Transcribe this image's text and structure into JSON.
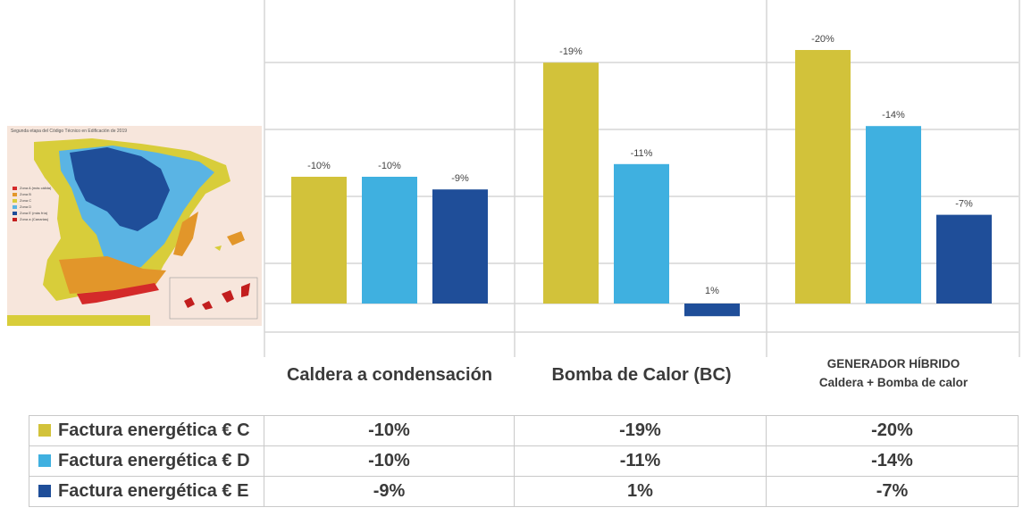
{
  "chart_data": {
    "type": "bar",
    "categories": [
      "Caldera a condensación",
      "Bomba de Calor (BC)",
      "GENERADOR HÍBRIDO\nCaldera + Bomba de calor"
    ],
    "category_lines": [
      [
        "Caldera a condensación"
      ],
      [
        "Bomba de Calor (BC)"
      ],
      [
        "GENERADOR HÍBRIDO",
        "Caldera + Bomba de calor"
      ]
    ],
    "series": [
      {
        "name": "Factura energética € C",
        "color": "#d2c23a",
        "values": [
          -10,
          -19,
          -20
        ],
        "labels": [
          "-10%",
          "-19%",
          "-20%"
        ]
      },
      {
        "name": "Factura energética € D",
        "color": "#3fb0e0",
        "values": [
          -10,
          -11,
          -14
        ],
        "labels": [
          "-10%",
          "-11%",
          "-14%"
        ]
      },
      {
        "name": "Factura energética € E",
        "color": "#1f4e99",
        "values": [
          -9,
          1,
          -7
        ],
        "labels": [
          "-9%",
          "1%",
          "-7%"
        ]
      }
    ],
    "note": "Bars grow upward for savings (negative %); the positive 1% bar extends below the baseline.",
    "grid": true,
    "legend": "table-bottom",
    "ylim": [
      -20,
      1
    ]
  },
  "table": {
    "rows": [
      {
        "label": "Factura energética € C",
        "values": [
          "-10%",
          "-19%",
          "-20%"
        ]
      },
      {
        "label": "Factura energética € D",
        "values": [
          "-10%",
          "-11%",
          "-14%"
        ]
      },
      {
        "label": "Factura energética € E",
        "values": [
          "-9%",
          "1%",
          "-7%"
        ]
      }
    ]
  },
  "map": {
    "title": "Segunda etapa del Código Técnico en Edificación de 2019",
    "legend": [
      {
        "label": "Zona A (más cálida)",
        "color": "#d42a2a"
      },
      {
        "label": "Zona B",
        "color": "#e2962a"
      },
      {
        "label": "Zona C",
        "color": "#d8cd3a"
      },
      {
        "label": "Zona D",
        "color": "#5ab4e4"
      },
      {
        "label": "Zona E (más fría)",
        "color": "#1f4e99"
      },
      {
        "label": "Zona a (Canarias)",
        "color": "#c21e1e"
      }
    ]
  }
}
